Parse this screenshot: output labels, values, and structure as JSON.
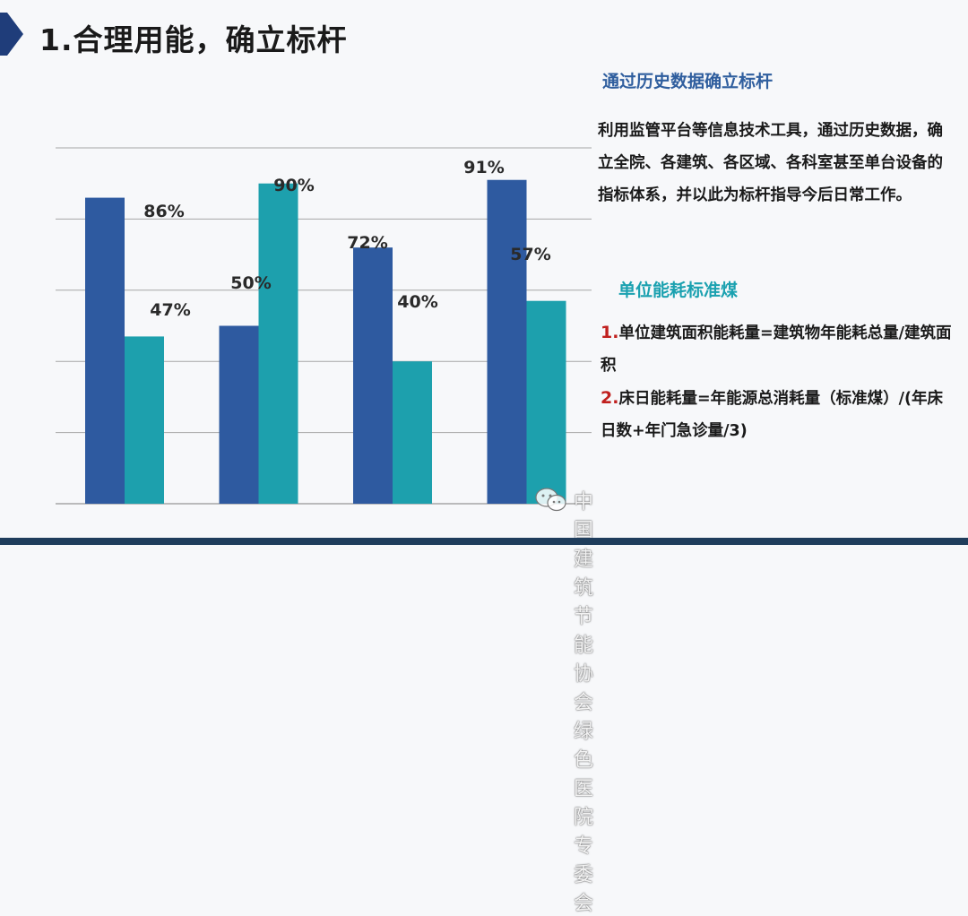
{
  "slide": {
    "title": "1.合理用能，确立标杆"
  },
  "colors": {
    "title_mark": "#1f3d7a",
    "heading_blue": "#2f5e9e",
    "heading_teal": "#1ba1b0",
    "accent_red": "#c0201e",
    "series_1": "#2e5aa0",
    "series_2": "#1da0ad",
    "gridline": "#a6a6a6",
    "bottom_band": "#1f3d5c"
  },
  "side_panel": {
    "heading_1": "通过历史数据确立标杆",
    "paragraph": "利用监管平台等信息技术工具，通过历史数据，确立全院、各建筑、各区域、各科室甚至单台设备的指标体系，并以此为标杆指导今后日常工作。",
    "heading_2": "单位能耗标准煤",
    "formula_1_num": "1.",
    "formula_1_text": "单位建筑面积能耗量=建筑物年能耗总量/建筑面积",
    "formula_2_num": "2.",
    "formula_2_text": "床日能耗量=年能源总消耗量（标准煤）/(年床日数+年门急诊量/3)"
  },
  "watermark": {
    "icon": "wechat-icon",
    "text": "中国建筑节能协会绿色医院专委会"
  },
  "chart_data": {
    "type": "bar",
    "categories": [
      "",
      "",
      "",
      ""
    ],
    "ylim": [
      0,
      100
    ],
    "grid": true,
    "legend": "none",
    "series": [
      {
        "values": [
          86,
          50,
          72,
          91
        ],
        "labels": [
          "86%",
          "50%",
          "72%",
          "91%"
        ]
      },
      {
        "values": [
          47,
          90,
          40,
          57
        ],
        "labels": [
          "47%",
          "90%",
          "40%",
          "57%"
        ]
      }
    ]
  }
}
